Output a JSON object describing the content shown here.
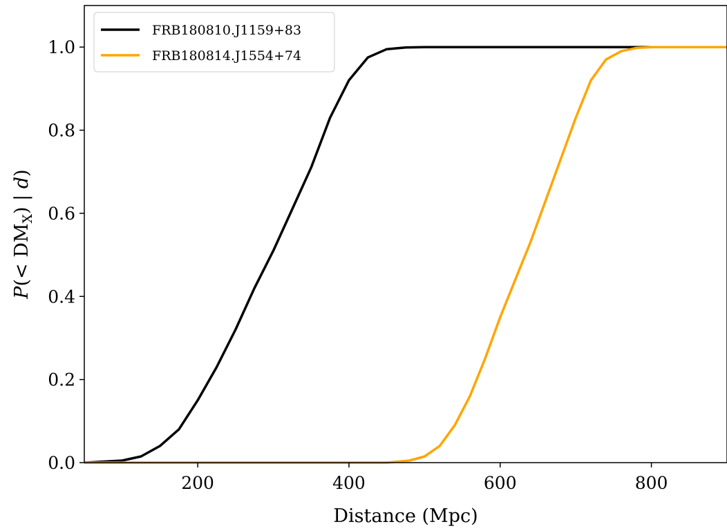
{
  "chart_data": {
    "type": "line",
    "xlabel": "Distance (Mpc)",
    "ylabel_parts": {
      "main": "P(< DM",
      "sub": "X",
      "tail": ") | d)"
    },
    "xlim": [
      50,
      900
    ],
    "ylim": [
      0,
      1.1
    ],
    "xticks": [
      200,
      400,
      600,
      800
    ],
    "yticks": [
      0.0,
      0.2,
      0.4,
      0.6,
      0.8,
      1.0
    ],
    "xtick_labels": [
      "200",
      "400",
      "600",
      "800"
    ],
    "ytick_labels": [
      "0.0",
      "0.2",
      "0.4",
      "0.6",
      "0.8",
      "1.0"
    ],
    "grid": false,
    "legend_position": "top-left",
    "series": [
      {
        "name": "FRB180810.J1159+83",
        "color": "#000000",
        "x": [
          50,
          100,
          125,
          150,
          175,
          200,
          225,
          250,
          275,
          300,
          325,
          350,
          375,
          400,
          425,
          450,
          475,
          500,
          550,
          900
        ],
        "y": [
          0.0,
          0.005,
          0.015,
          0.04,
          0.08,
          0.15,
          0.23,
          0.32,
          0.42,
          0.51,
          0.61,
          0.71,
          0.83,
          0.92,
          0.975,
          0.995,
          0.999,
          1.0,
          1.0,
          1.0
        ]
      },
      {
        "name": "FRB180814.J1554+74",
        "color": "#ffa500",
        "x": [
          50,
          450,
          480,
          500,
          520,
          540,
          560,
          580,
          600,
          620,
          640,
          660,
          680,
          700,
          720,
          740,
          760,
          780,
          800,
          900
        ],
        "y": [
          0.0,
          0.0,
          0.005,
          0.015,
          0.04,
          0.09,
          0.16,
          0.25,
          0.35,
          0.44,
          0.53,
          0.63,
          0.73,
          0.83,
          0.92,
          0.97,
          0.99,
          0.998,
          1.0,
          1.0
        ]
      }
    ]
  }
}
